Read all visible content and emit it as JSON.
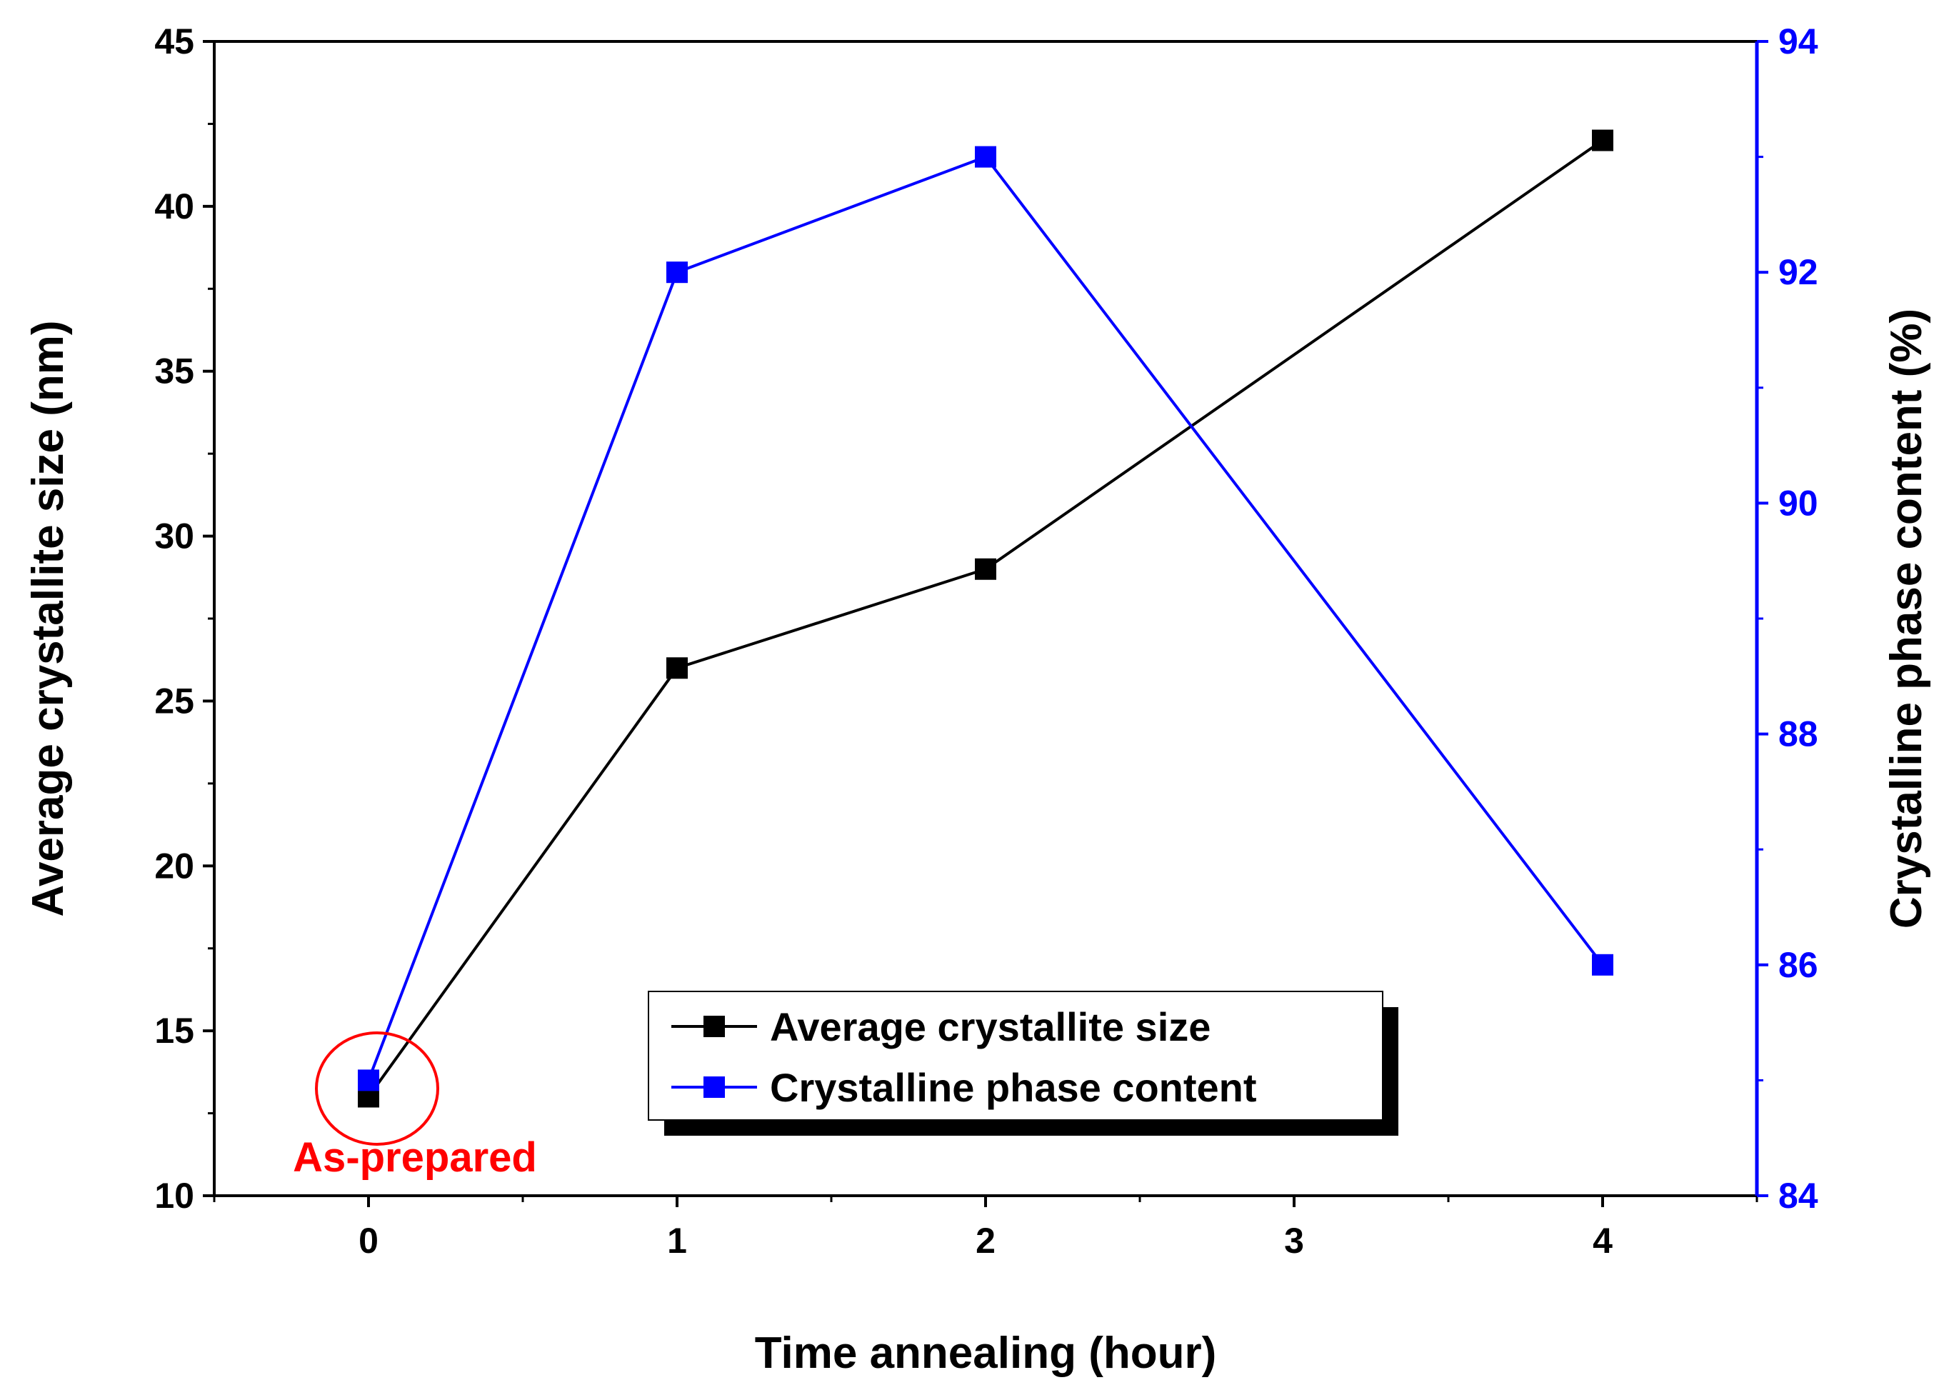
{
  "chart_data": {
    "type": "line",
    "x": [
      0,
      1,
      2,
      4
    ],
    "xlabel": "Time annealing (hour)",
    "xlim": [
      -0.5,
      4.5
    ],
    "xticks": [
      0,
      1,
      2,
      3,
      4
    ],
    "xtick_labels": [
      "0",
      "1",
      "2",
      "3",
      "4"
    ],
    "y_left": {
      "label": "Average crystallite size (nm)",
      "lim": [
        10,
        45
      ],
      "ticks": [
        10,
        15,
        20,
        25,
        30,
        35,
        40,
        45
      ],
      "tick_labels": [
        "10",
        "15",
        "20",
        "25",
        "30",
        "35",
        "40",
        "45"
      ],
      "color": "#000000"
    },
    "y_right": {
      "label": "Crystalline phase content (%)",
      "lim": [
        84,
        94
      ],
      "ticks": [
        84,
        86,
        88,
        90,
        92,
        94
      ],
      "tick_labels": [
        "84",
        "86",
        "88",
        "90",
        "92",
        "94"
      ],
      "color": "#0000ff"
    },
    "series": [
      {
        "name": "Average crystallite size",
        "axis": "left",
        "color": "#000000",
        "values": [
          13,
          26,
          29,
          42
        ]
      },
      {
        "name": "Crystalline phase content",
        "axis": "right",
        "color": "#0000ff",
        "values": [
          85,
          92,
          93,
          86
        ]
      }
    ],
    "legend_position": "bottom-center",
    "annotation": {
      "text": "As-prepared",
      "x": 0,
      "color": "#ff0000"
    }
  }
}
